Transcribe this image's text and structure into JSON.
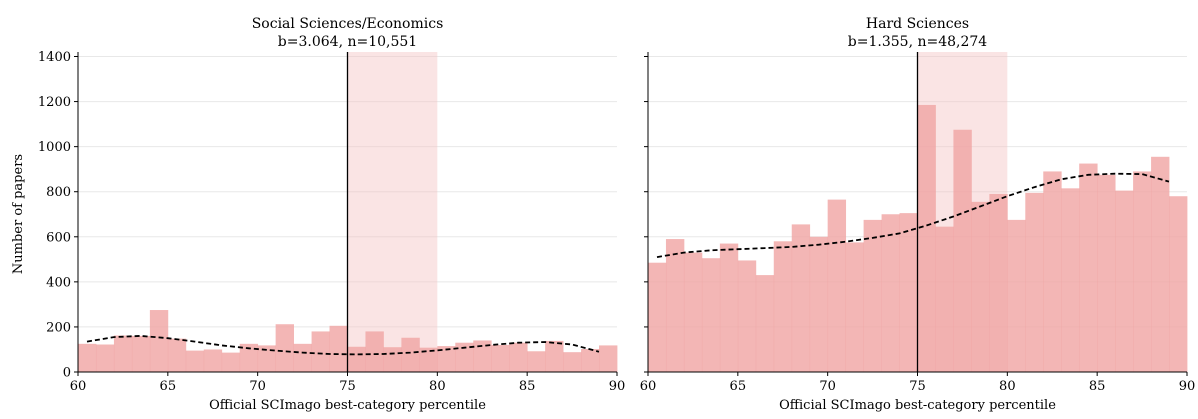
{
  "figure": {
    "ylabel": "Number of papers",
    "xlabel": "Official SCImago best-category percentile"
  },
  "chart_data": [
    {
      "type": "bar",
      "title": "Social Sciences/Economics",
      "subtitle": "b=3.064, n=10,551",
      "xlabel": "Official SCImago best-category percentile",
      "ylabel": "Number of papers",
      "xlim": [
        60,
        90
      ],
      "ylim": [
        0,
        1420
      ],
      "xticks": [
        "60",
        "65",
        "70",
        "75",
        "80",
        "85",
        "90"
      ],
      "yticks": [
        "0",
        "200",
        "400",
        "600",
        "800",
        "1000",
        "1200",
        "1400"
      ],
      "bin_width": 1,
      "grid": "horizontal",
      "cutoff": 75,
      "highlight_range": [
        75,
        80
      ],
      "bins": [
        {
          "start": 60,
          "value": 125
        },
        {
          "start": 61,
          "value": 122
        },
        {
          "start": 62,
          "value": 162
        },
        {
          "start": 63,
          "value": 160
        },
        {
          "start": 64,
          "value": 275
        },
        {
          "start": 65,
          "value": 148
        },
        {
          "start": 66,
          "value": 95
        },
        {
          "start": 67,
          "value": 100
        },
        {
          "start": 68,
          "value": 86
        },
        {
          "start": 69,
          "value": 125
        },
        {
          "start": 70,
          "value": 118
        },
        {
          "start": 71,
          "value": 212
        },
        {
          "start": 72,
          "value": 125
        },
        {
          "start": 73,
          "value": 180
        },
        {
          "start": 74,
          "value": 205
        },
        {
          "start": 75,
          "value": 112
        },
        {
          "start": 76,
          "value": 180
        },
        {
          "start": 77,
          "value": 110
        },
        {
          "start": 78,
          "value": 152
        },
        {
          "start": 79,
          "value": 108
        },
        {
          "start": 80,
          "value": 115
        },
        {
          "start": 81,
          "value": 130
        },
        {
          "start": 82,
          "value": 140
        },
        {
          "start": 83,
          "value": 120
        },
        {
          "start": 84,
          "value": 130
        },
        {
          "start": 85,
          "value": 92
        },
        {
          "start": 86,
          "value": 138
        },
        {
          "start": 87,
          "value": 88
        },
        {
          "start": 88,
          "value": 102
        },
        {
          "start": 89,
          "value": 118
        }
      ],
      "fit_curve": {
        "x": [
          60.5,
          62,
          63.5,
          65,
          66.5,
          68,
          69.5,
          71,
          72.5,
          74,
          75.5,
          77,
          78.5,
          80,
          81.5,
          83,
          84.5,
          86,
          87.5,
          89
        ],
        "y": [
          135,
          155,
          160,
          150,
          135,
          118,
          105,
          95,
          86,
          80,
          78,
          80,
          86,
          96,
          108,
          120,
          130,
          133,
          122,
          90
        ]
      }
    },
    {
      "type": "bar",
      "title": "Hard Sciences",
      "subtitle": "b=1.355, n=48,274",
      "xlabel": "Official SCImago best-category percentile",
      "xlim": [
        60,
        90
      ],
      "ylim": [
        0,
        1420
      ],
      "xticks": [
        "60",
        "65",
        "70",
        "75",
        "80",
        "85",
        "90"
      ],
      "bin_width": 1,
      "grid": "horizontal",
      "cutoff": 75,
      "highlight_range": [
        75,
        80
      ],
      "bins": [
        {
          "start": 60,
          "value": 485
        },
        {
          "start": 61,
          "value": 590
        },
        {
          "start": 62,
          "value": 530
        },
        {
          "start": 63,
          "value": 505
        },
        {
          "start": 64,
          "value": 570
        },
        {
          "start": 65,
          "value": 495
        },
        {
          "start": 66,
          "value": 430
        },
        {
          "start": 67,
          "value": 580
        },
        {
          "start": 68,
          "value": 655
        },
        {
          "start": 69,
          "value": 600
        },
        {
          "start": 70,
          "value": 765
        },
        {
          "start": 71,
          "value": 575
        },
        {
          "start": 72,
          "value": 675
        },
        {
          "start": 73,
          "value": 700
        },
        {
          "start": 74,
          "value": 705
        },
        {
          "start": 75,
          "value": 1185
        },
        {
          "start": 76,
          "value": 645
        },
        {
          "start": 77,
          "value": 1075
        },
        {
          "start": 78,
          "value": 755
        },
        {
          "start": 79,
          "value": 790
        },
        {
          "start": 80,
          "value": 675
        },
        {
          "start": 81,
          "value": 795
        },
        {
          "start": 82,
          "value": 890
        },
        {
          "start": 83,
          "value": 815
        },
        {
          "start": 84,
          "value": 925
        },
        {
          "start": 85,
          "value": 875
        },
        {
          "start": 86,
          "value": 805
        },
        {
          "start": 87,
          "value": 890
        },
        {
          "start": 88,
          "value": 955
        },
        {
          "start": 89,
          "value": 780
        }
      ],
      "fit_curve": {
        "x": [
          60.5,
          62,
          63.5,
          65,
          66.5,
          68,
          69.5,
          71,
          72.5,
          74,
          75.5,
          77,
          78.5,
          80,
          81.5,
          83,
          84.5,
          86,
          87.5,
          89
        ],
        "y": [
          510,
          530,
          540,
          545,
          550,
          555,
          565,
          578,
          595,
          615,
          650,
          690,
          735,
          780,
          820,
          855,
          875,
          880,
          878,
          845
        ]
      }
    }
  ],
  "colors": {
    "bar": "#f0a4a2",
    "bar_opacity": 0.8,
    "highlight": "#f4c4c3",
    "highlight_opacity": 0.45,
    "fit_line": "#000000",
    "cutoff_line": "#000000",
    "grid": "#e8e8e8"
  }
}
